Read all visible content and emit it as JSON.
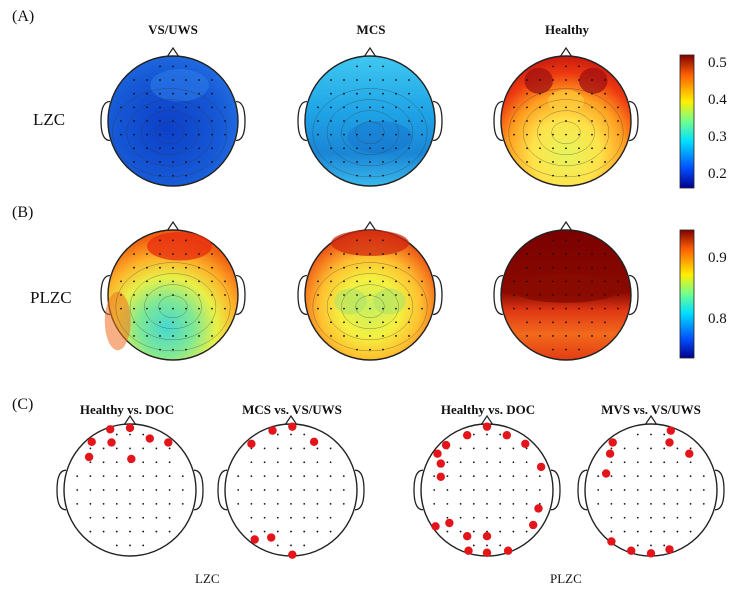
{
  "panels": {
    "A": {
      "label": "(A)",
      "row_label": "LZC",
      "columns": [
        "VS/UWS",
        "MCS",
        "Healthy"
      ],
      "colorbar_ticks": [
        "0.5",
        "0.4",
        "0.3",
        "0.2"
      ]
    },
    "B": {
      "label": "(B)",
      "row_label": "PLZC",
      "colorbar_ticks": [
        "0.9",
        "0.8"
      ]
    },
    "C": {
      "label": "(C)",
      "subtitles": [
        "Healthy vs. DOC",
        "MCS vs. VS/UWS",
        "Healthy vs. DOC",
        "MVS vs. VS/UWS"
      ],
      "group_labels": [
        "LZC",
        "PLZC"
      ]
    }
  },
  "colors": {
    "colormap": [
      "#00008f",
      "#0050ff",
      "#00dfff",
      "#70ff8f",
      "#ffef00",
      "#ff6000",
      "#800000"
    ],
    "significant_marker": "#e3151b"
  }
}
